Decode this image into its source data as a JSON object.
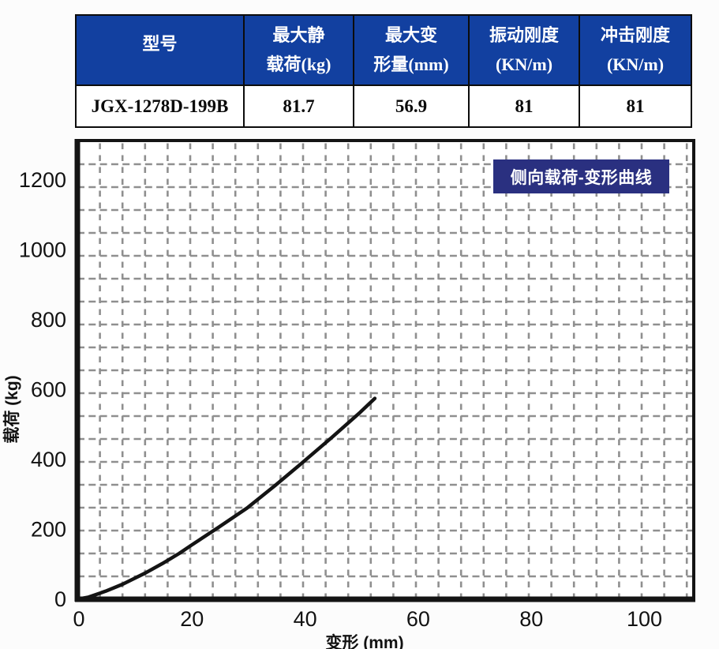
{
  "table": {
    "header_bg": "#1240a0",
    "header_text_color": "#ffffff",
    "headers": [
      {
        "line1": "型号",
        "line2": ""
      },
      {
        "line1": "最大静",
        "line2": "载荷(kg)"
      },
      {
        "line1": "最大变",
        "line2": "形量(mm)"
      },
      {
        "line1": "振动刚度",
        "line2": "(KN/m)"
      },
      {
        "line1": "冲击刚度",
        "line2": "(KN/m)"
      }
    ],
    "row": [
      "JGX-1278D-199B",
      "81.7",
      "56.9",
      "81",
      "81"
    ]
  },
  "chart": {
    "badge_label": "侧向载荷-变形曲线",
    "badge_bg": "#2a3080"
  },
  "chart_data": {
    "type": "line",
    "title": "侧向载荷-变形曲线",
    "xlabel": "变形 (mm)",
    "ylabel": "载荷 (kg)",
    "xlim": [
      0,
      109
    ],
    "ylim": [
      0,
      1313
    ],
    "x_ticks": [
      0,
      20,
      40,
      60,
      80,
      100
    ],
    "y_ticks": [
      0,
      200,
      400,
      600,
      800,
      1000,
      1200
    ],
    "grid": "dashed",
    "legend": "none",
    "curve_color": "#141414",
    "grid_color": "#8f8f8f",
    "series": [
      {
        "name": "侧向载荷-变形曲线",
        "color": "#141414",
        "points": [
          [
            0,
            0
          ],
          [
            2,
            6
          ],
          [
            5,
            23
          ],
          [
            8,
            43
          ],
          [
            10,
            59
          ],
          [
            12,
            75
          ],
          [
            15,
            102
          ],
          [
            18,
            131
          ],
          [
            20,
            153
          ],
          [
            25,
            206
          ],
          [
            30,
            261
          ],
          [
            35,
            326
          ],
          [
            40,
            394
          ],
          [
            45,
            463
          ],
          [
            50,
            535
          ],
          [
            52.6,
            575
          ]
        ]
      }
    ]
  }
}
